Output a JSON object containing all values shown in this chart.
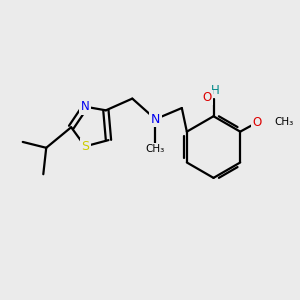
{
  "bg_color": "#ebebeb",
  "atom_colors": {
    "C": "#000000",
    "N": "#0000ee",
    "O": "#dd0000",
    "S": "#cccc00",
    "H": "#008888"
  },
  "bond_color": "#000000",
  "bond_width": 1.6,
  "font_size": 8.5
}
